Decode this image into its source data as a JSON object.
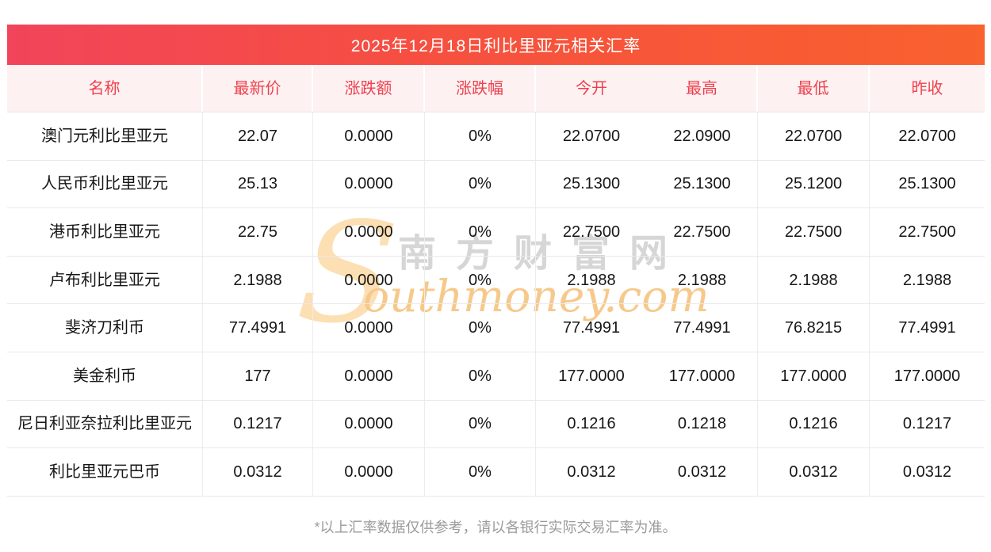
{
  "title": "2025年12月18日利比里亚元相关汇率",
  "table": {
    "columns": [
      "名称",
      "最新价",
      "涨跌额",
      "涨跌幅",
      "今开",
      "最高",
      "最低",
      "昨收"
    ],
    "rows": [
      [
        "澳门元利比里亚元",
        "22.07",
        "0.0000",
        "0%",
        "22.0700",
        "22.0900",
        "22.0700",
        "22.0700"
      ],
      [
        "人民币利比里亚元",
        "25.13",
        "0.0000",
        "0%",
        "25.1300",
        "25.1300",
        "25.1200",
        "25.1300"
      ],
      [
        "港币利比里亚元",
        "22.75",
        "0.0000",
        "0%",
        "22.7500",
        "22.7500",
        "22.7500",
        "22.7500"
      ],
      [
        "卢布利比里亚元",
        "2.1988",
        "0.0000",
        "0%",
        "2.1988",
        "2.1988",
        "2.1988",
        "2.1988"
      ],
      [
        "斐济刀利币",
        "77.4991",
        "0.0000",
        "0%",
        "77.4991",
        "77.4991",
        "76.8215",
        "77.4991"
      ],
      [
        "美金利币",
        "177",
        "0.0000",
        "0%",
        "177.0000",
        "177.0000",
        "177.0000",
        "177.0000"
      ],
      [
        "尼日利亚奈拉利比里亚元",
        "0.1217",
        "0.0000",
        "0%",
        "0.1216",
        "0.1218",
        "0.1216",
        "0.1217"
      ],
      [
        "利比里亚元巴币",
        "0.0312",
        "0.0000",
        "0%",
        "0.0312",
        "0.0312",
        "0.0312",
        "0.0312"
      ]
    ]
  },
  "watermark": {
    "s": "S",
    "cn": "南方财富网",
    "en": "outhmoney.com"
  },
  "footer": "*以上汇率数据仅供参考，请以各银行实际交易汇率为准。",
  "colors": {
    "title_gradient_left": "#f2445a",
    "title_gradient_right": "#f9612e",
    "title_text": "#ffffff",
    "header_bg": "#fdf1f2",
    "header_text": "#ef414d",
    "row_text": "#161616",
    "row_divider": "#e9e9ed",
    "footer_text": "#9b9b9b",
    "watermark_s": "#fcdfb2",
    "watermark_cn": "#d6d6d6",
    "watermark_en": "#f6c98b"
  }
}
